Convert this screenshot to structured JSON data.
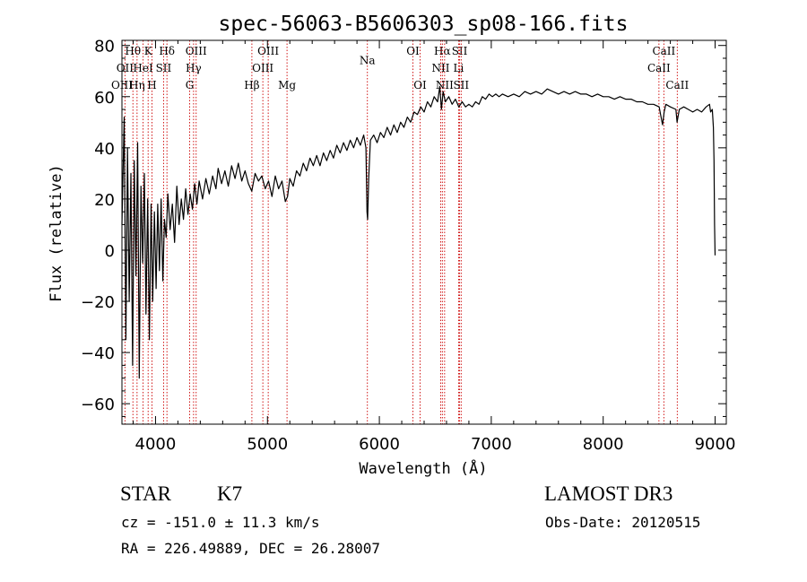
{
  "chart_data": {
    "type": "line",
    "title": "spec-56063-B5606303_sp08-166.fits",
    "xlabel": "Wavelength (Å)",
    "ylabel": "Flux (relative)",
    "xlim": [
      3700,
      9100
    ],
    "ylim": [
      -68,
      82
    ],
    "xticks": [
      4000,
      5000,
      6000,
      7000,
      8000,
      9000
    ],
    "yticks": [
      -60,
      -40,
      -20,
      0,
      20,
      40,
      60,
      80
    ],
    "series": [
      {
        "name": "flux",
        "points": [
          [
            3700,
            10
          ],
          [
            3720,
            52
          ],
          [
            3735,
            -35
          ],
          [
            3750,
            40
          ],
          [
            3765,
            -20
          ],
          [
            3780,
            30
          ],
          [
            3795,
            -45
          ],
          [
            3810,
            35
          ],
          [
            3825,
            -10
          ],
          [
            3840,
            42
          ],
          [
            3855,
            -50
          ],
          [
            3870,
            25
          ],
          [
            3885,
            -5
          ],
          [
            3900,
            30
          ],
          [
            3915,
            -25
          ],
          [
            3930,
            20
          ],
          [
            3945,
            -35
          ],
          [
            3960,
            18
          ],
          [
            3975,
            -20
          ],
          [
            3990,
            15
          ],
          [
            4005,
            -15
          ],
          [
            4020,
            18
          ],
          [
            4035,
            -8
          ],
          [
            4050,
            20
          ],
          [
            4065,
            -12
          ],
          [
            4080,
            12
          ],
          [
            4095,
            5
          ],
          [
            4110,
            22
          ],
          [
            4130,
            8
          ],
          [
            4150,
            18
          ],
          [
            4170,
            3
          ],
          [
            4190,
            25
          ],
          [
            4210,
            10
          ],
          [
            4230,
            20
          ],
          [
            4250,
            12
          ],
          [
            4270,
            24
          ],
          [
            4290,
            14
          ],
          [
            4310,
            22
          ],
          [
            4330,
            16
          ],
          [
            4350,
            26
          ],
          [
            4370,
            18
          ],
          [
            4390,
            27
          ],
          [
            4420,
            20
          ],
          [
            4450,
            28
          ],
          [
            4480,
            22
          ],
          [
            4510,
            29
          ],
          [
            4540,
            24
          ],
          [
            4560,
            32
          ],
          [
            4590,
            26
          ],
          [
            4620,
            31
          ],
          [
            4650,
            25
          ],
          [
            4680,
            33
          ],
          [
            4710,
            28
          ],
          [
            4740,
            34
          ],
          [
            4770,
            27
          ],
          [
            4800,
            31
          ],
          [
            4830,
            26
          ],
          [
            4860,
            23
          ],
          [
            4890,
            30
          ],
          [
            4920,
            27
          ],
          [
            4950,
            29
          ],
          [
            4980,
            24
          ],
          [
            5010,
            27
          ],
          [
            5040,
            21
          ],
          [
            5070,
            29
          ],
          [
            5100,
            24
          ],
          [
            5130,
            27
          ],
          [
            5160,
            19
          ],
          [
            5180,
            21
          ],
          [
            5200,
            28
          ],
          [
            5230,
            25
          ],
          [
            5260,
            31
          ],
          [
            5290,
            29
          ],
          [
            5320,
            34
          ],
          [
            5350,
            31
          ],
          [
            5380,
            36
          ],
          [
            5410,
            33
          ],
          [
            5440,
            37
          ],
          [
            5470,
            33
          ],
          [
            5500,
            38
          ],
          [
            5530,
            35
          ],
          [
            5560,
            39
          ],
          [
            5590,
            36
          ],
          [
            5620,
            41
          ],
          [
            5650,
            38
          ],
          [
            5680,
            42
          ],
          [
            5710,
            39
          ],
          [
            5740,
            43
          ],
          [
            5770,
            40
          ],
          [
            5800,
            44
          ],
          [
            5830,
            41
          ],
          [
            5860,
            45
          ],
          [
            5880,
            40
          ],
          [
            5890,
            15
          ],
          [
            5895,
            12
          ],
          [
            5905,
            28
          ],
          [
            5920,
            43
          ],
          [
            5950,
            45
          ],
          [
            5980,
            42
          ],
          [
            6010,
            46
          ],
          [
            6040,
            44
          ],
          [
            6070,
            48
          ],
          [
            6100,
            45
          ],
          [
            6130,
            49
          ],
          [
            6160,
            46
          ],
          [
            6190,
            50
          ],
          [
            6220,
            48
          ],
          [
            6250,
            52
          ],
          [
            6280,
            50
          ],
          [
            6310,
            54
          ],
          [
            6340,
            53
          ],
          [
            6370,
            56
          ],
          [
            6400,
            54
          ],
          [
            6430,
            58
          ],
          [
            6460,
            56
          ],
          [
            6490,
            60
          ],
          [
            6520,
            58
          ],
          [
            6540,
            64
          ],
          [
            6555,
            55
          ],
          [
            6570,
            62
          ],
          [
            6590,
            58
          ],
          [
            6620,
            60
          ],
          [
            6650,
            57
          ],
          [
            6680,
            59
          ],
          [
            6710,
            56
          ],
          [
            6740,
            58
          ],
          [
            6770,
            56
          ],
          [
            6800,
            57
          ],
          [
            6830,
            56
          ],
          [
            6860,
            58
          ],
          [
            6890,
            57
          ],
          [
            6920,
            60
          ],
          [
            6950,
            59
          ],
          [
            6980,
            61
          ],
          [
            7010,
            60
          ],
          [
            7040,
            61
          ],
          [
            7070,
            60
          ],
          [
            7100,
            61
          ],
          [
            7150,
            60
          ],
          [
            7200,
            61
          ],
          [
            7250,
            60
          ],
          [
            7300,
            62
          ],
          [
            7350,
            61
          ],
          [
            7400,
            62
          ],
          [
            7450,
            61
          ],
          [
            7500,
            63
          ],
          [
            7550,
            62
          ],
          [
            7600,
            61
          ],
          [
            7650,
            62
          ],
          [
            7700,
            61
          ],
          [
            7750,
            62
          ],
          [
            7800,
            61
          ],
          [
            7850,
            61
          ],
          [
            7900,
            60
          ],
          [
            7950,
            61
          ],
          [
            8000,
            60
          ],
          [
            8050,
            60
          ],
          [
            8100,
            59
          ],
          [
            8150,
            60
          ],
          [
            8200,
            59
          ],
          [
            8250,
            59
          ],
          [
            8300,
            58
          ],
          [
            8350,
            58
          ],
          [
            8400,
            57
          ],
          [
            8450,
            57
          ],
          [
            8500,
            56
          ],
          [
            8530,
            49
          ],
          [
            8545,
            54
          ],
          [
            8560,
            57
          ],
          [
            8600,
            56
          ],
          [
            8650,
            55
          ],
          [
            8660,
            50
          ],
          [
            8680,
            55
          ],
          [
            8720,
            56
          ],
          [
            8760,
            55
          ],
          [
            8800,
            54
          ],
          [
            8840,
            55
          ],
          [
            8880,
            54
          ],
          [
            8920,
            56
          ],
          [
            8950,
            57
          ],
          [
            8960,
            54
          ],
          [
            8975,
            55
          ],
          [
            8985,
            48
          ],
          [
            8990,
            35
          ],
          [
            8995,
            10
          ],
          [
            9000,
            -2
          ]
        ]
      }
    ],
    "line_markers": [
      {
        "label": "Hθ",
        "x": 3798,
        "row": 0
      },
      {
        "label": "K",
        "x": 3934,
        "row": 0
      },
      {
        "label": "Hδ",
        "x": 4102,
        "row": 0
      },
      {
        "label": "OIII",
        "x": 4363,
        "row": 0
      },
      {
        "label": "OIII",
        "x": 5007,
        "row": 0
      },
      {
        "label": "OI",
        "x": 6300,
        "row": 0
      },
      {
        "label": "Hα",
        "x": 6563,
        "row": 0
      },
      {
        "label": "SII",
        "x": 6717,
        "row": 0
      },
      {
        "label": "CaII",
        "x": 8542,
        "row": 0
      },
      {
        "label": "OII",
        "x": 3727,
        "row": 1
      },
      {
        "label": "HeI",
        "x": 3889,
        "row": 1
      },
      {
        "label": "SII",
        "x": 4072,
        "row": 1
      },
      {
        "label": "Hγ",
        "x": 4340,
        "row": 1
      },
      {
        "label": "OIII",
        "x": 4959,
        "row": 1
      },
      {
        "label": "NII",
        "x": 6548,
        "row": 1
      },
      {
        "label": "Li",
        "x": 6708,
        "row": 1
      },
      {
        "label": "CaII",
        "x": 8498,
        "row": 1
      },
      {
        "label": "OIII",
        "x": 3700,
        "row": 2
      },
      {
        "label": "Hη",
        "x": 3835,
        "row": 2
      },
      {
        "label": "H",
        "x": 3968,
        "row": 2
      },
      {
        "label": "G",
        "x": 4305,
        "row": 2
      },
      {
        "label": "Hβ",
        "x": 4861,
        "row": 2
      },
      {
        "label": "Mg",
        "x": 5175,
        "row": 2
      },
      {
        "label": "Na",
        "x": 5893,
        "row": 0.55
      },
      {
        "label": "OI",
        "x": 6364,
        "row": 2
      },
      {
        "label": "NII",
        "x": 6583,
        "row": 2
      },
      {
        "label": "SII",
        "x": 6731,
        "row": 2
      },
      {
        "label": "CaII",
        "x": 8662,
        "row": 2
      }
    ],
    "colors": {
      "line": "#000000",
      "markers": "#cc0000",
      "axes": "#000000"
    }
  },
  "info": {
    "object_class": "STAR",
    "subclass": "K7",
    "survey": "LAMOST DR3",
    "cz": "cz = -151.0 ± 11.3 km/s",
    "obs_date": "Obs-Date: 20120515",
    "coords": "RA = 226.49889, DEC =  26.28007"
  }
}
